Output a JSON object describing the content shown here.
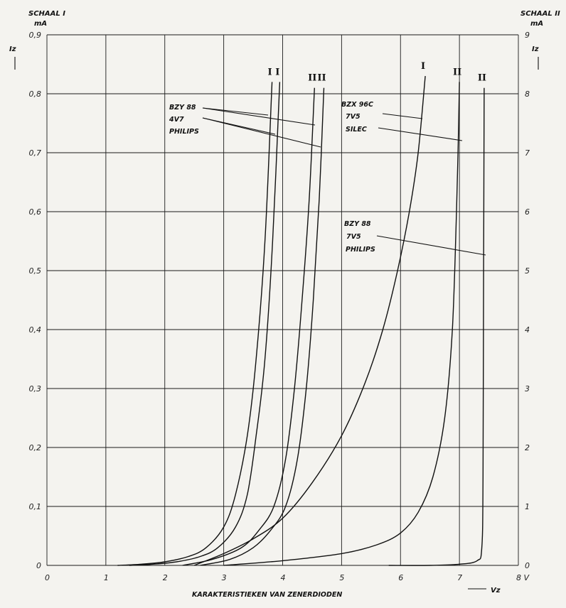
{
  "chart_data": {
    "type": "line",
    "title": "KARAKTERISTIEKEN VAN ZENERDIODEN",
    "left_axis": {
      "scale_label": "SCHAAL I",
      "unit": "mA",
      "quantity": "Iz",
      "range": [
        0,
        0.9
      ],
      "ticks": [
        "0",
        "0,1",
        "0,2",
        "0,3",
        "0,4",
        "0,5",
        "0,6",
        "0,7",
        "0,8",
        "0,9"
      ]
    },
    "right_axis": {
      "scale_label": "SCHAAL II",
      "unit": "mA",
      "quantity": "Iz",
      "range": [
        0,
        9
      ],
      "ticks": [
        "0",
        "1",
        "2",
        "3",
        "4",
        "5",
        "6",
        "7",
        "8",
        "9"
      ]
    },
    "x_axis": {
      "quantity": "Vz",
      "unit": "V",
      "range": [
        0,
        8
      ],
      "ticks": [
        "0",
        "1",
        "2",
        "3",
        "4",
        "5",
        "6",
        "7",
        "8"
      ]
    },
    "grid": true,
    "annotations": [
      {
        "lines": [
          "BZY 88",
          "4V7",
          "PHILIPS"
        ]
      },
      {
        "lines": [
          "BZX 96C",
          "7V5",
          "SILEC"
        ]
      },
      {
        "lines": [
          "BZY 88",
          "7V5",
          "PHILIPS"
        ]
      }
    ],
    "series": [
      {
        "scale": "I",
        "label": "I",
        "x": [
          1.2,
          1.6,
          2.0,
          2.4,
          2.7,
          3.0,
          3.2,
          3.4,
          3.55,
          3.7,
          3.82
        ],
        "y": [
          0,
          0.002,
          0.006,
          0.015,
          0.03,
          0.065,
          0.12,
          0.22,
          0.35,
          0.55,
          0.82
        ]
      },
      {
        "scale": "I",
        "label": "I",
        "x": [
          1.4,
          1.8,
          2.2,
          2.6,
          2.9,
          3.2,
          3.4,
          3.55,
          3.7,
          3.83,
          3.95
        ],
        "y": [
          0,
          0.002,
          0.006,
          0.015,
          0.03,
          0.065,
          0.12,
          0.22,
          0.35,
          0.55,
          0.82
        ]
      },
      {
        "scale": "II",
        "label": "II",
        "x": [
          2.3,
          2.8,
          3.3,
          3.6,
          3.85,
          4.05,
          4.2,
          4.33,
          4.45,
          4.54
        ],
        "y": [
          0,
          0.1,
          0.3,
          0.6,
          1.0,
          1.8,
          3.0,
          4.5,
          6.2,
          8.1
        ]
      },
      {
        "scale": "II",
        "label": "II",
        "x": [
          2.6,
          3.1,
          3.5,
          3.8,
          4.05,
          4.25,
          4.4,
          4.52,
          4.62,
          4.7
        ],
        "y": [
          0,
          0.1,
          0.3,
          0.6,
          1.0,
          1.8,
          3.0,
          4.5,
          6.2,
          8.1
        ]
      },
      {
        "scale": "I",
        "label": "I",
        "x": [
          2.5,
          3.0,
          3.5,
          4.0,
          4.5,
          5.0,
          5.4,
          5.7,
          5.95,
          6.15,
          6.3,
          6.42
        ],
        "y": [
          0,
          0.02,
          0.045,
          0.08,
          0.14,
          0.22,
          0.31,
          0.4,
          0.5,
          0.6,
          0.7,
          0.83
        ]
      },
      {
        "scale": "II",
        "label": "II",
        "x": [
          3.0,
          4.0,
          5.0,
          5.6,
          6.0,
          6.3,
          6.55,
          6.75,
          6.88,
          6.95,
          6.98,
          7.0
        ],
        "y": [
          0,
          0.08,
          0.2,
          0.35,
          0.55,
          0.9,
          1.5,
          2.5,
          4.0,
          6.0,
          7.2,
          8.2
        ]
      },
      {
        "scale": "II",
        "label": "II",
        "x": [
          5.8,
          6.5,
          7.0,
          7.3,
          7.38,
          7.4,
          7.41,
          7.42
        ],
        "y": [
          0,
          0,
          0.02,
          0.08,
          0.3,
          1.5,
          5.0,
          8.1
        ]
      }
    ]
  }
}
